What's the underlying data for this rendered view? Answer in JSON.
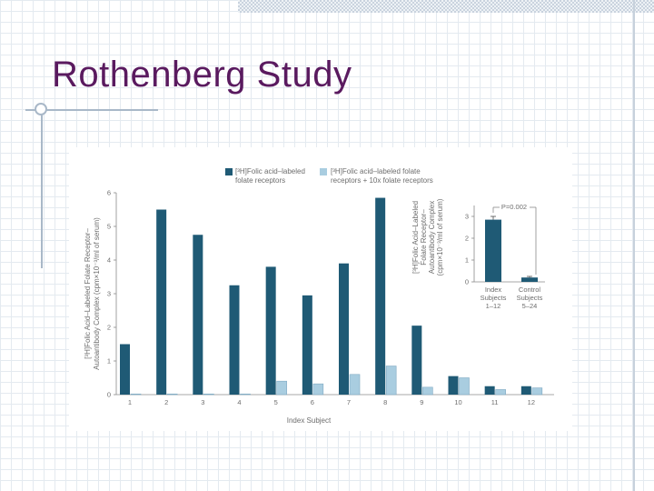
{
  "slide": {
    "title": "Rothenberg Study"
  },
  "colors": {
    "title": "#5a1a5f",
    "series_dark": "#1f5a75",
    "series_light": "#a9cde0",
    "text": "#6d6d6d"
  },
  "chart_data": [
    {
      "type": "bar",
      "xlabel": "Index Subject",
      "ylabel_lines": [
        "[³H]Folic Acid–Labeled Folate Receptor–",
        "Autoantibody Complex (cpm×10⁻³/ml of serum)"
      ],
      "ylim": [
        0,
        6
      ],
      "yticks": [
        "0",
        "1",
        "2",
        "3",
        "4",
        "5",
        "6"
      ],
      "categories": [
        "1",
        "2",
        "3",
        "4",
        "5",
        "6",
        "7",
        "8",
        "9",
        "10",
        "11",
        "12"
      ],
      "series": [
        {
          "name_lines": [
            "[³H]Folic acid–labeled",
            "folate receptors"
          ],
          "color": "#1f5a75",
          "values": [
            1.5,
            5.5,
            4.75,
            3.25,
            3.8,
            2.95,
            3.9,
            5.85,
            2.05,
            0.55,
            0.25,
            0.25
          ]
        },
        {
          "name_lines": [
            "[³H]Folic acid–labeled folate",
            "receptors + 10x folate receptors"
          ],
          "color": "#a9cde0",
          "values": [
            0.02,
            0.02,
            0.02,
            0.02,
            0.4,
            0.32,
            0.6,
            0.85,
            0.22,
            0.5,
            0.15,
            0.2
          ]
        }
      ],
      "grid": false,
      "legend": "top"
    },
    {
      "type": "bar",
      "ylabel_lines": [
        "[³H]Folic Acid–Labeled",
        "Folate Receptor–",
        "Autoantibody Complex",
        "(cpm×10⁻³/ml of serum)"
      ],
      "ylim": [
        0,
        3.5
      ],
      "yticks": [
        "0",
        "1",
        "2",
        "3"
      ],
      "categories": [
        {
          "lines": [
            "Index",
            "Subjects",
            "1–12"
          ]
        },
        {
          "lines": [
            "Control",
            "Subjects",
            "5–24"
          ]
        }
      ],
      "values": [
        2.85,
        0.2
      ],
      "error": [
        0.15,
        0.05
      ],
      "annotation": "P=0.002",
      "color": "#1f5a75"
    }
  ]
}
